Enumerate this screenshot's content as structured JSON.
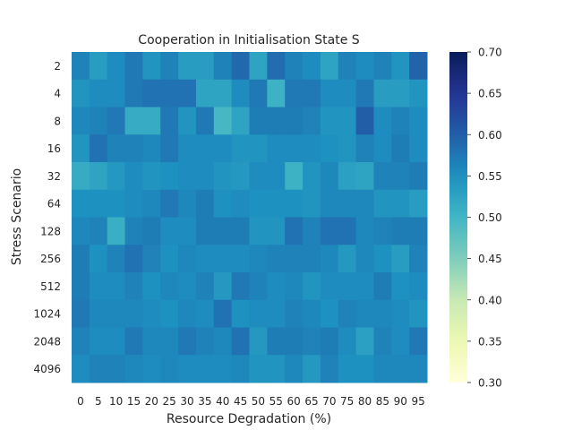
{
  "chart_data": {
    "type": "heatmap",
    "title": "Cooperation in Initialisation State S",
    "xlabel": "Resource Degradation (%)",
    "ylabel": "Stress Scenario",
    "x_categories": [
      "0",
      "5",
      "10",
      "15",
      "20",
      "25",
      "30",
      "35",
      "40",
      "45",
      "50",
      "55",
      "60",
      "65",
      "70",
      "75",
      "80",
      "85",
      "90",
      "95"
    ],
    "y_categories": [
      "2",
      "4",
      "8",
      "16",
      "32",
      "64",
      "128",
      "256",
      "512",
      "1024",
      "2048",
      "4096"
    ],
    "colorbar": {
      "min": 0.3,
      "max": 0.7,
      "ticks": [
        "0.30",
        "0.35",
        "0.40",
        "0.45",
        "0.50",
        "0.55",
        "0.60",
        "0.65",
        "0.70"
      ],
      "colormap": "YlGnBu"
    },
    "values": [
      [
        0.565,
        0.535,
        0.555,
        0.575,
        0.545,
        0.565,
        0.535,
        0.535,
        0.565,
        0.59,
        0.525,
        0.585,
        0.565,
        0.555,
        0.525,
        0.565,
        0.555,
        0.565,
        0.545,
        0.595
      ],
      [
        0.545,
        0.555,
        0.555,
        0.575,
        0.58,
        0.58,
        0.58,
        0.525,
        0.525,
        0.555,
        0.575,
        0.505,
        0.575,
        0.575,
        0.555,
        0.555,
        0.575,
        0.535,
        0.535,
        0.545
      ],
      [
        0.56,
        0.565,
        0.575,
        0.515,
        0.515,
        0.575,
        0.545,
        0.575,
        0.495,
        0.525,
        0.57,
        0.57,
        0.57,
        0.565,
        0.545,
        0.545,
        0.6,
        0.555,
        0.565,
        0.555
      ],
      [
        0.545,
        0.58,
        0.565,
        0.565,
        0.56,
        0.575,
        0.555,
        0.555,
        0.555,
        0.545,
        0.545,
        0.555,
        0.555,
        0.555,
        0.55,
        0.545,
        0.565,
        0.555,
        0.57,
        0.555
      ],
      [
        0.515,
        0.525,
        0.54,
        0.555,
        0.545,
        0.55,
        0.555,
        0.555,
        0.545,
        0.54,
        0.555,
        0.555,
        0.505,
        0.545,
        0.56,
        0.53,
        0.525,
        0.565,
        0.565,
        0.57
      ],
      [
        0.55,
        0.55,
        0.55,
        0.555,
        0.56,
        0.575,
        0.56,
        0.57,
        0.55,
        0.555,
        0.55,
        0.55,
        0.55,
        0.545,
        0.56,
        0.56,
        0.56,
        0.545,
        0.545,
        0.535
      ],
      [
        0.56,
        0.565,
        0.51,
        0.565,
        0.57,
        0.555,
        0.555,
        0.57,
        0.57,
        0.57,
        0.545,
        0.545,
        0.58,
        0.565,
        0.58,
        0.58,
        0.56,
        0.565,
        0.57,
        0.57
      ],
      [
        0.57,
        0.55,
        0.565,
        0.58,
        0.565,
        0.55,
        0.56,
        0.555,
        0.555,
        0.555,
        0.56,
        0.565,
        0.565,
        0.565,
        0.56,
        0.54,
        0.56,
        0.55,
        0.535,
        0.565
      ],
      [
        0.57,
        0.555,
        0.555,
        0.565,
        0.55,
        0.56,
        0.555,
        0.565,
        0.54,
        0.575,
        0.565,
        0.555,
        0.56,
        0.545,
        0.555,
        0.555,
        0.555,
        0.57,
        0.55,
        0.555
      ],
      [
        0.575,
        0.56,
        0.56,
        0.56,
        0.555,
        0.55,
        0.56,
        0.555,
        0.58,
        0.55,
        0.555,
        0.555,
        0.565,
        0.56,
        0.55,
        0.565,
        0.56,
        0.56,
        0.555,
        0.545
      ],
      [
        0.565,
        0.555,
        0.555,
        0.575,
        0.56,
        0.56,
        0.575,
        0.565,
        0.56,
        0.58,
        0.54,
        0.57,
        0.57,
        0.565,
        0.57,
        0.555,
        0.53,
        0.565,
        0.555,
        0.575
      ],
      [
        0.555,
        0.565,
        0.565,
        0.56,
        0.555,
        0.56,
        0.555,
        0.555,
        0.555,
        0.56,
        0.545,
        0.545,
        0.56,
        0.54,
        0.565,
        0.55,
        0.55,
        0.56,
        0.56,
        0.56
      ]
    ]
  }
}
